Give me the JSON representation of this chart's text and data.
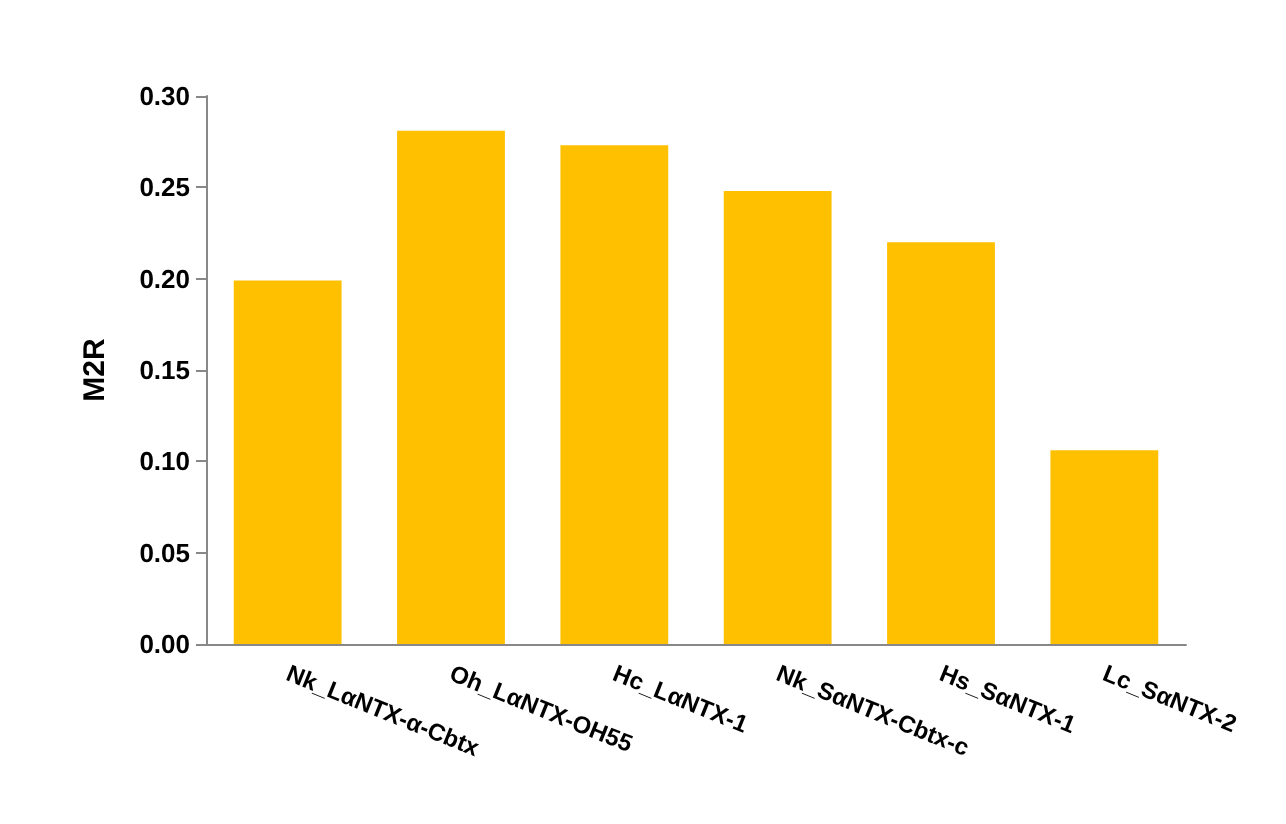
{
  "chart_data": {
    "type": "bar",
    "ylabel": "M2R",
    "categories": [
      "Nk_LαNTX-α-Cbtx",
      "Oh_LαNTX-OH55",
      "Hc_LαNTX-1",
      "Nk_SαNTX-Cbtx-c",
      "Hs_SαNTX-1",
      "Lc_SαNTX-2"
    ],
    "values": [
      0.199,
      0.281,
      0.273,
      0.248,
      0.22,
      0.106
    ],
    "color": "#ffc000",
    "ylim": [
      0,
      0.3
    ],
    "yticks": [
      {
        "value": 0,
        "label": "0.00"
      },
      {
        "value": 0.05,
        "label": "0.05"
      },
      {
        "value": 0.1,
        "label": "0.10"
      },
      {
        "value": 0.15,
        "label": "0.15"
      },
      {
        "value": 0.2,
        "label": "0.20"
      },
      {
        "value": 0.25,
        "label": "0.25"
      },
      {
        "value": 0.3,
        "label": "0.30"
      }
    ],
    "grid": false
  }
}
